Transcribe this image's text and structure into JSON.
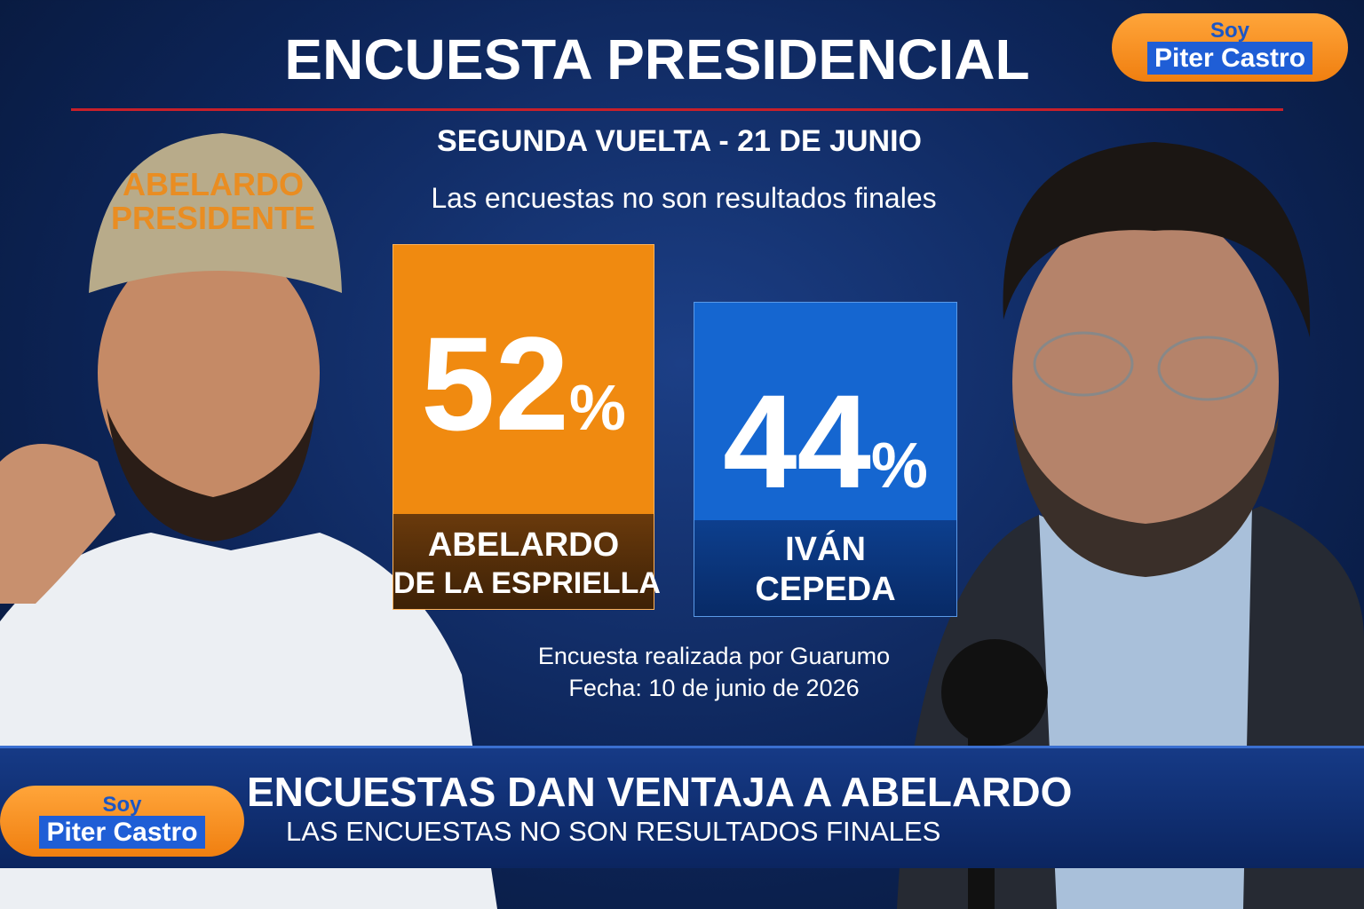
{
  "header": {
    "title": "ENCUESTA PRESIDENCIAL",
    "subtitle": "SEGUNDA VUELTA - 21 DE JUNIO",
    "note": "Las encuestas no son resultados finales"
  },
  "logo": {
    "line1": "Soy",
    "line2": "Piter Castro"
  },
  "candidates": [
    {
      "value": 52,
      "unit": "%",
      "name_lines": [
        "ABELARDO",
        "DE LA ESPRIELLA"
      ],
      "cap_lines": [
        "ABELARDO",
        "PRESIDENTE"
      ]
    },
    {
      "value": 44,
      "unit": "%",
      "name_lines": [
        "IVÁN",
        "CEPEDA"
      ]
    }
  ],
  "source": {
    "line1": "Encuesta realizada por Guarumo",
    "line2": "Fecha: 10 de junio de 2026"
  },
  "banner": {
    "headline": "ENCUESTAS DAN VENTAJA A ABELARDO",
    "subheadline": "LAS ENCUESTAS NO SON RESULTADOS FINALES"
  }
}
